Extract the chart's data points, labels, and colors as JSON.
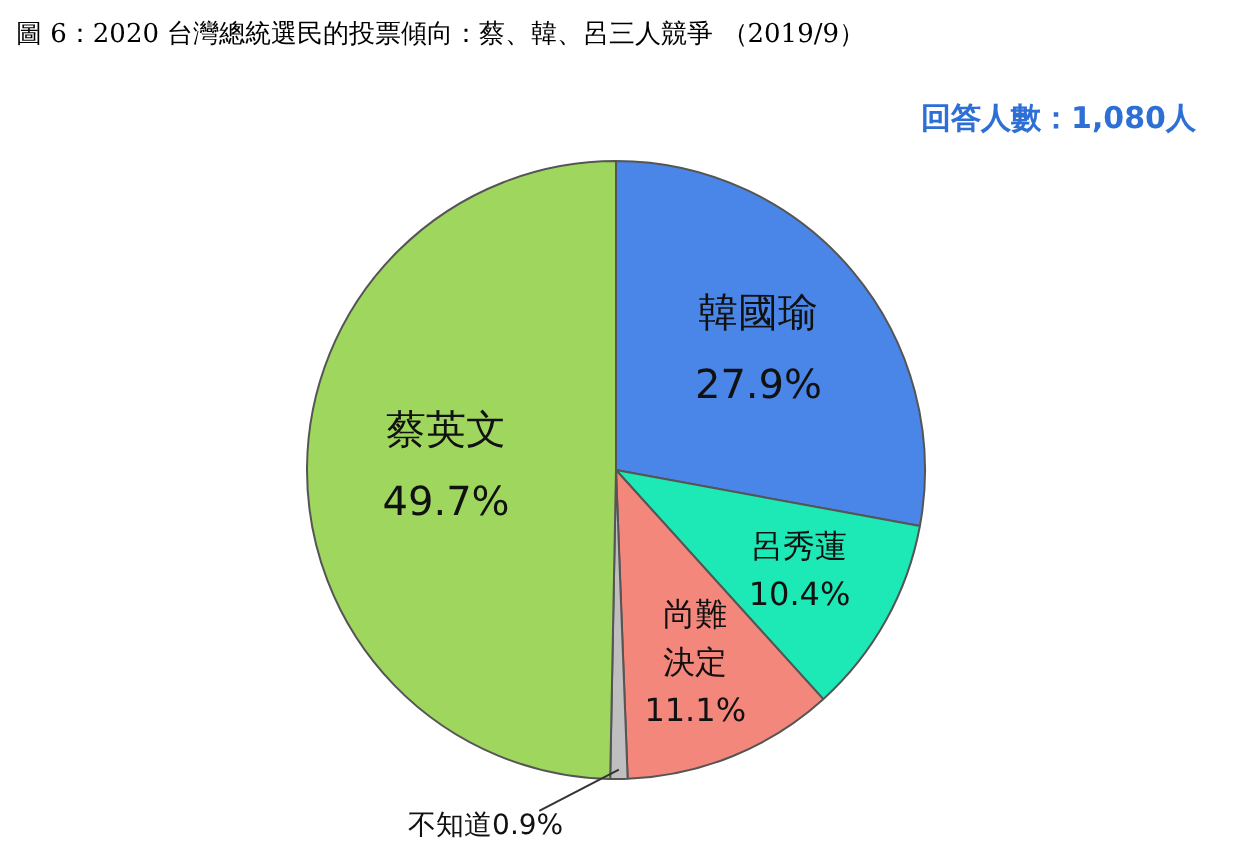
{
  "chart_data": {
    "type": "pie",
    "title": "圖 6：2020 台灣總統選民的投票傾向：蔡、韓、呂三人競爭 （2019/9）",
    "subtitle": "回答人數：1,080人",
    "categories": [
      "韓國瑜",
      "呂秀蓮",
      "尚難決定",
      "不知道",
      "蔡英文"
    ],
    "values": [
      27.9,
      10.4,
      11.1,
      0.9,
      49.7
    ],
    "value_labels": [
      "27.9%",
      "10.4%",
      "11.1%",
      "0.9%",
      "49.7%"
    ],
    "colors": [
      "#4a86e8",
      "#1de9b6",
      "#f4877c",
      "#bfbfbf",
      "#9fd65e"
    ],
    "legend": false
  }
}
